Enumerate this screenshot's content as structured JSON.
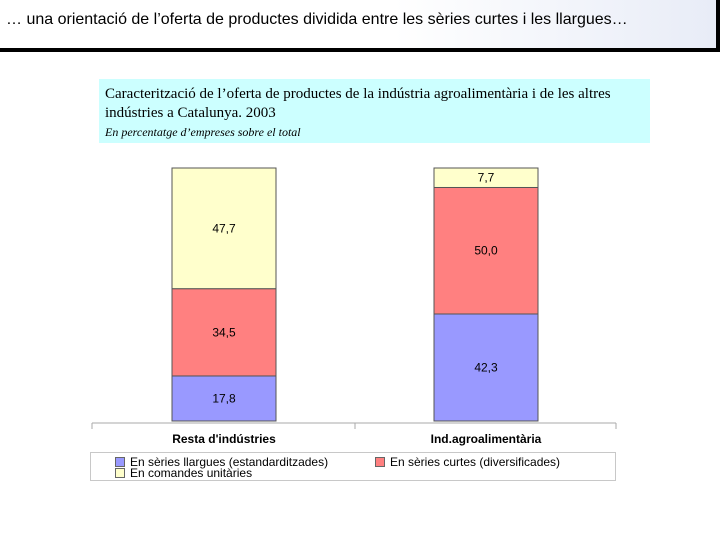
{
  "slide_header": "… una orientació de l’oferta de productes dividida entre les sèries curtes i les llargues…",
  "chart_data": {
    "type": "bar",
    "stacked": true,
    "title": "Caracterització de l’oferta de productes de la indústria agroalimentària i de les altres indústries a Catalunya. 2003",
    "subtitle": "En percentatge d’empreses sobre el total",
    "categories": [
      "Resta d'indústries",
      "Ind.agroalimentària"
    ],
    "series": [
      {
        "name": "En sèries llargues (estandarditzades)",
        "values": [
          17.8,
          42.3
        ],
        "labels": [
          "17,8",
          "42,3"
        ],
        "color": "#9999ff"
      },
      {
        "name": "En sèries curtes (diversificades)",
        "values": [
          34.5,
          50.0
        ],
        "labels": [
          "34,5",
          "50,0"
        ],
        "color": "#ff8080"
      },
      {
        "name": "En comandes unitàries",
        "values": [
          47.7,
          7.7
        ],
        "labels": [
          "47,7",
          "7,7"
        ],
        "color": "#ffffcc"
      }
    ],
    "ylim": [
      0,
      100
    ],
    "grid": false,
    "legend_position": "bottom"
  }
}
